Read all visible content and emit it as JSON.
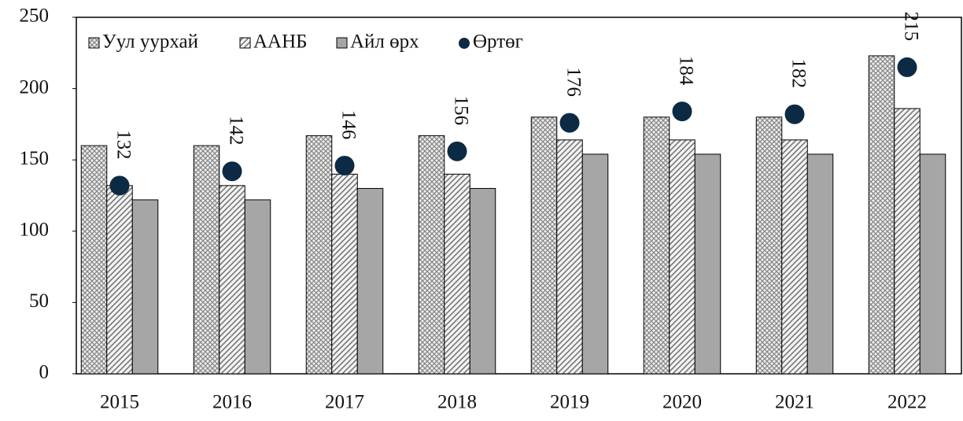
{
  "chart_data": {
    "type": "bar",
    "categories": [
      "2015",
      "2016",
      "2017",
      "2018",
      "2019",
      "2020",
      "2021",
      "2022"
    ],
    "series": [
      {
        "name": "Уул уурхай",
        "color": "#9a9a9a",
        "pattern": "crosshatch",
        "values": [
          160,
          160,
          167,
          167,
          180,
          180,
          180,
          223
        ]
      },
      {
        "name": "ААНБ",
        "color": "#8a8a8a",
        "pattern": "diagonal",
        "values": [
          132,
          132,
          140,
          140,
          164,
          164,
          164,
          186
        ]
      },
      {
        "name": "Айл өрх",
        "color": "#a6a6a6",
        "pattern": "solid",
        "values": [
          122,
          122,
          130,
          130,
          154,
          154,
          154,
          154
        ]
      },
      {
        "name": "Өртөг",
        "color": "#0c2a44",
        "type": "scatter",
        "values": [
          132,
          142,
          146,
          156,
          176,
          184,
          182,
          215
        ]
      }
    ],
    "ylim": [
      0,
      250
    ],
    "yticks": [
      0,
      50,
      100,
      150,
      200,
      250
    ],
    "grid": false,
    "legend": "top-left"
  }
}
